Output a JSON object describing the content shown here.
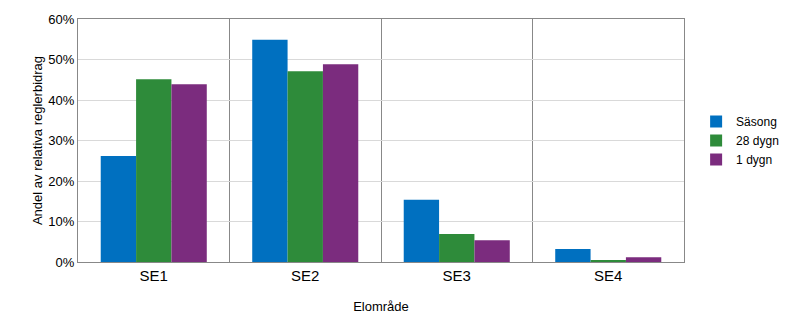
{
  "chart_data": {
    "type": "bar",
    "categories": [
      "SE1",
      "SE2",
      "SE3",
      "SE4"
    ],
    "series": [
      {
        "name": "Säsong",
        "color": "#0070c0",
        "values": [
          26.2,
          54.9,
          15.4,
          3.2
        ]
      },
      {
        "name": "28 dygn",
        "color": "#2e8b3a",
        "values": [
          45.1,
          47.1,
          6.9,
          0.3
        ]
      },
      {
        "name": "1 dygn",
        "color": "#7b2c7e",
        "values": [
          43.9,
          48.8,
          5.4,
          1.2
        ]
      }
    ],
    "x_label": "Elområde",
    "y_label": "Andel av relativa reglerbidrag",
    "ylim": [
      0,
      60
    ],
    "yticks": [
      {
        "value": 0,
        "label": "0%"
      },
      {
        "value": 10,
        "label": "10%"
      },
      {
        "value": 20,
        "label": "20%"
      },
      {
        "value": 30,
        "label": "30%"
      },
      {
        "value": 40,
        "label": "40%"
      },
      {
        "value": 50,
        "label": "50%"
      },
      {
        "value": 60,
        "label": "60%"
      }
    ],
    "grid": true,
    "legend": "right"
  }
}
